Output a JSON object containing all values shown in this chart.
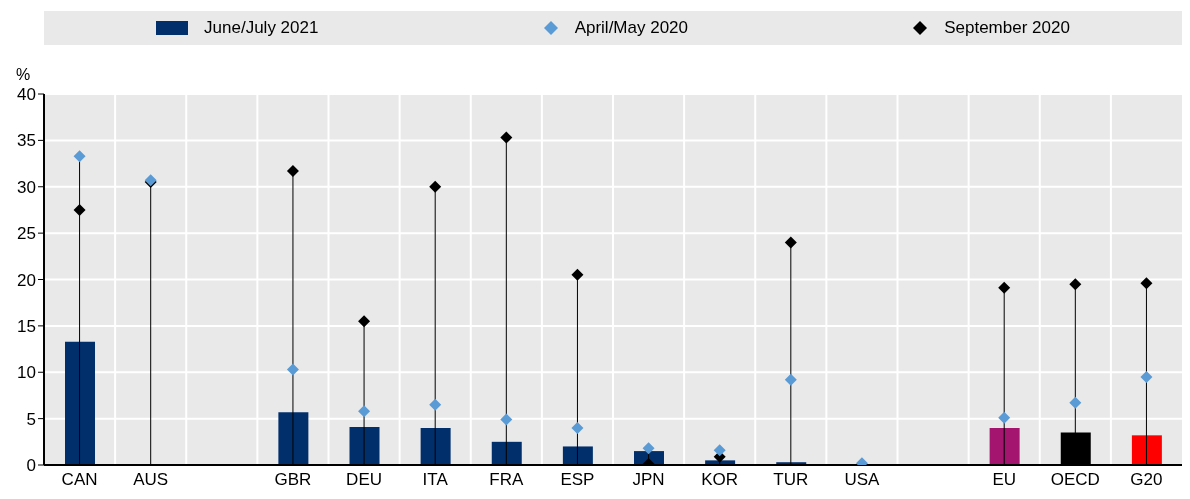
{
  "chart_data": {
    "type": "bar",
    "ylabel": "%",
    "categories": [
      "CAN",
      "AUS",
      null,
      "GBR",
      "DEU",
      "ITA",
      "FRA",
      "ESP",
      "JPN",
      "KOR",
      "TUR",
      "USA",
      null,
      "EU",
      "OECD",
      "G20"
    ],
    "series": [
      {
        "name": "June/July 2021",
        "color": "#002f6c",
        "colors": [
          "#002f6c",
          "#002f6c",
          "#002f6c",
          "#002f6c",
          "#002f6c",
          "#002f6c",
          "#002f6c",
          "#002f6c",
          "#002f6c",
          "#002f6c",
          "#002f6c",
          "#002f6c",
          "#002f6c",
          "#a4156f",
          "#000000",
          "#ff0000"
        ],
        "values": [
          13.3,
          null,
          null,
          5.7,
          4.1,
          4.0,
          2.5,
          2.0,
          1.5,
          0.5,
          0.3,
          null,
          null,
          4.0,
          3.5,
          3.2
        ]
      },
      {
        "name": "April/May 2020",
        "type": "scatter",
        "color": "#5b9bd5",
        "values": [
          33.3,
          30.7,
          null,
          10.3,
          5.8,
          6.5,
          4.9,
          4.0,
          1.8,
          1.6,
          9.2,
          0.2,
          null,
          5.1,
          6.7,
          9.5
        ]
      },
      {
        "name": "September 2020",
        "type": "scatter",
        "color": "#000000",
        "values": [
          27.5,
          30.5,
          null,
          31.7,
          15.5,
          30.0,
          35.3,
          20.5,
          0.1,
          0.9,
          24.0,
          null,
          null,
          19.1,
          19.5,
          19.6
        ]
      }
    ],
    "ylim": [
      0,
      40
    ],
    "yticks": [
      0,
      5,
      10,
      15,
      20,
      25,
      30,
      35,
      40
    ],
    "grid": true,
    "legend": "top",
    "marker": "diamond"
  }
}
